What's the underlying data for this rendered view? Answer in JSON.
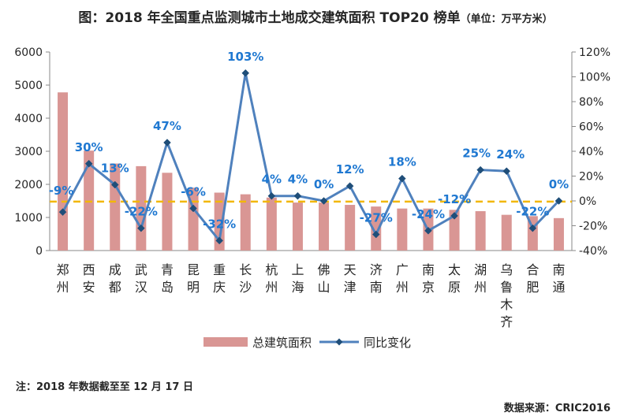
{
  "title": "图：2018 年全国重点监测城市土地成交建筑面积 TOP20 榜单",
  "unit": "（单位：万平方米）",
  "note": "注：2018 年数据截至至 12 月 17 日",
  "source": "数据来源：CRIC2016",
  "colors": {
    "bar": "#d99694",
    "line": "#4f81bd",
    "label": "#1f78d1",
    "ref_line": "#f2b705"
  },
  "chart_data": {
    "type": "bar",
    "categories": [
      "郑州",
      "西安",
      "成都",
      "武汉",
      "青岛",
      "昆明",
      "重庆",
      "长沙",
      "杭州",
      "上海",
      "佛山",
      "天津",
      "济南",
      "广州",
      "南京",
      "太原",
      "湖州",
      "乌鲁木齐",
      "合肥",
      "南通"
    ],
    "series": [
      {
        "name": "总建筑面积",
        "type": "bar",
        "axis": "left",
        "values": [
          4780,
          3020,
          2630,
          2550,
          2350,
          1900,
          1750,
          1700,
          1600,
          1450,
          1450,
          1380,
          1330,
          1270,
          1270,
          1230,
          1190,
          1080,
          1040,
          980
        ]
      },
      {
        "name": "同比变化",
        "type": "line",
        "axis": "right",
        "values": [
          -9,
          30,
          13,
          -22,
          47,
          -6,
          -32,
          103,
          4,
          4,
          0,
          12,
          -27,
          18,
          -24,
          -12,
          25,
          24,
          -22,
          0
        ],
        "labels": [
          "-9%",
          "30%",
          "13%",
          "-22%",
          "47%",
          "-6%",
          "-32%",
          "103%",
          "4%",
          "4%",
          "0%",
          "12%",
          "-27%",
          "18%",
          "-24%",
          "-12%",
          "25%",
          "24%",
          "-22%",
          "0%"
        ]
      }
    ],
    "y_left": {
      "min": 0,
      "max": 6000,
      "ticks": [
        "0",
        "1000",
        "2000",
        "3000",
        "4000",
        "5000",
        "6000"
      ]
    },
    "y_right": {
      "min": -40,
      "max": 120,
      "ticks": [
        "-40%",
        "-20%",
        "0%",
        "20%",
        "40%",
        "60%",
        "80%",
        "100%",
        "120%"
      ]
    },
    "reference_line": {
      "axis": "left",
      "value": 1480,
      "style": "dashed"
    },
    "legend": {
      "position": "bottom",
      "items": [
        "总建筑面积",
        "同比变化"
      ]
    },
    "grid": false
  }
}
